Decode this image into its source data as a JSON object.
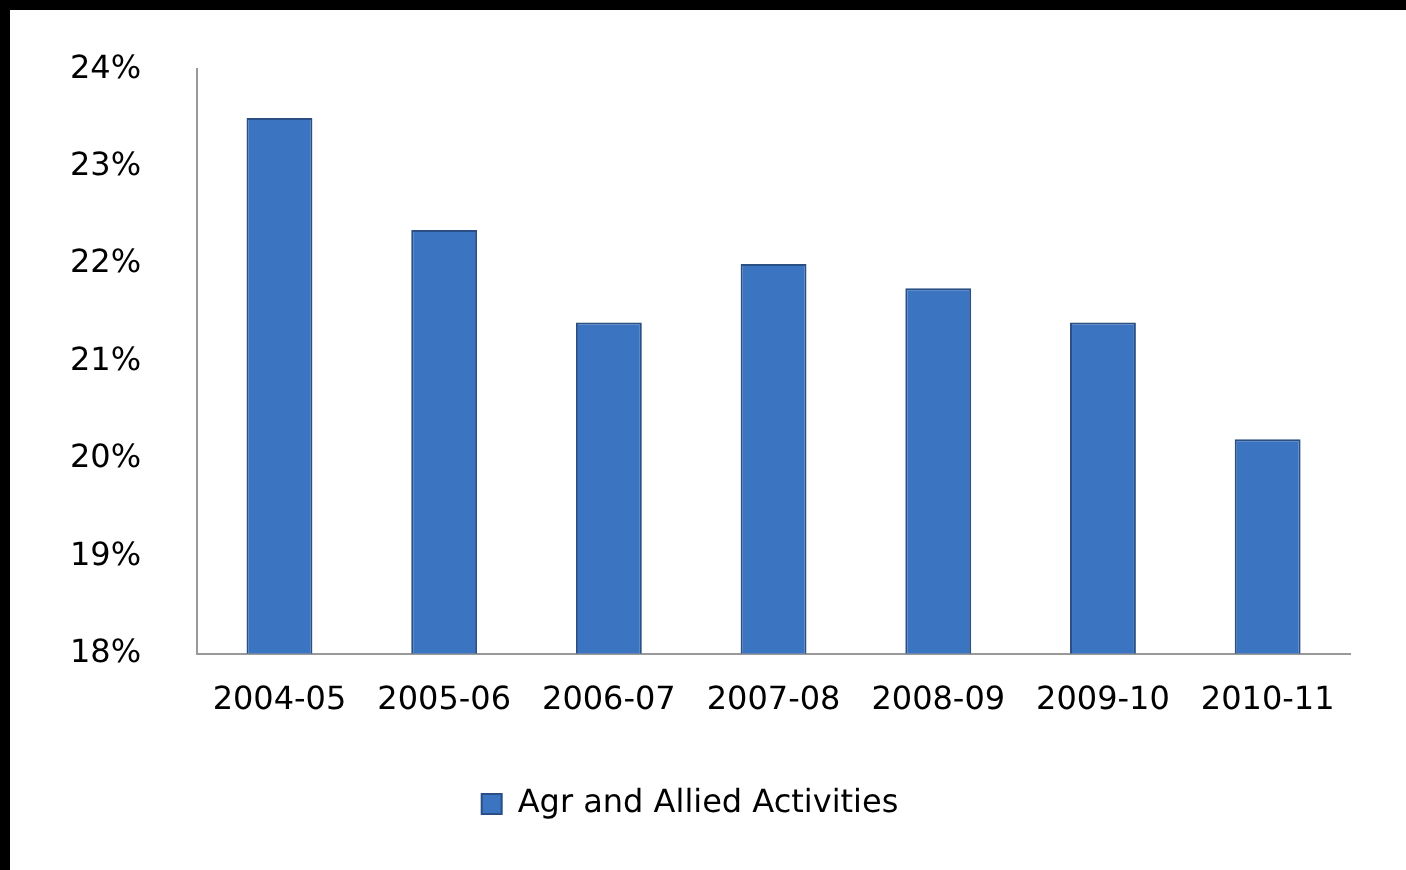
{
  "chart_data": {
    "type": "bar",
    "categories": [
      "2004-05",
      "2005-06",
      "2006-07",
      "2007-08",
      "2008-09",
      "2009-10",
      "2010-11"
    ],
    "series": [
      {
        "name": "Agr and Allied Activities",
        "color": "#3b74c0",
        "values": [
          23.5,
          22.35,
          21.4,
          22.0,
          21.75,
          21.4,
          20.2
        ]
      }
    ],
    "ylim": [
      18,
      24
    ],
    "yticks": [
      {
        "value": 18,
        "label": "18%"
      },
      {
        "value": 19,
        "label": "19%"
      },
      {
        "value": 20,
        "label": "20%"
      },
      {
        "value": 21,
        "label": "21%"
      },
      {
        "value": 22,
        "label": "22%"
      },
      {
        "value": 23,
        "label": "23%"
      },
      {
        "value": 24,
        "label": "24%"
      }
    ],
    "grid": false,
    "legend": "bottom"
  }
}
